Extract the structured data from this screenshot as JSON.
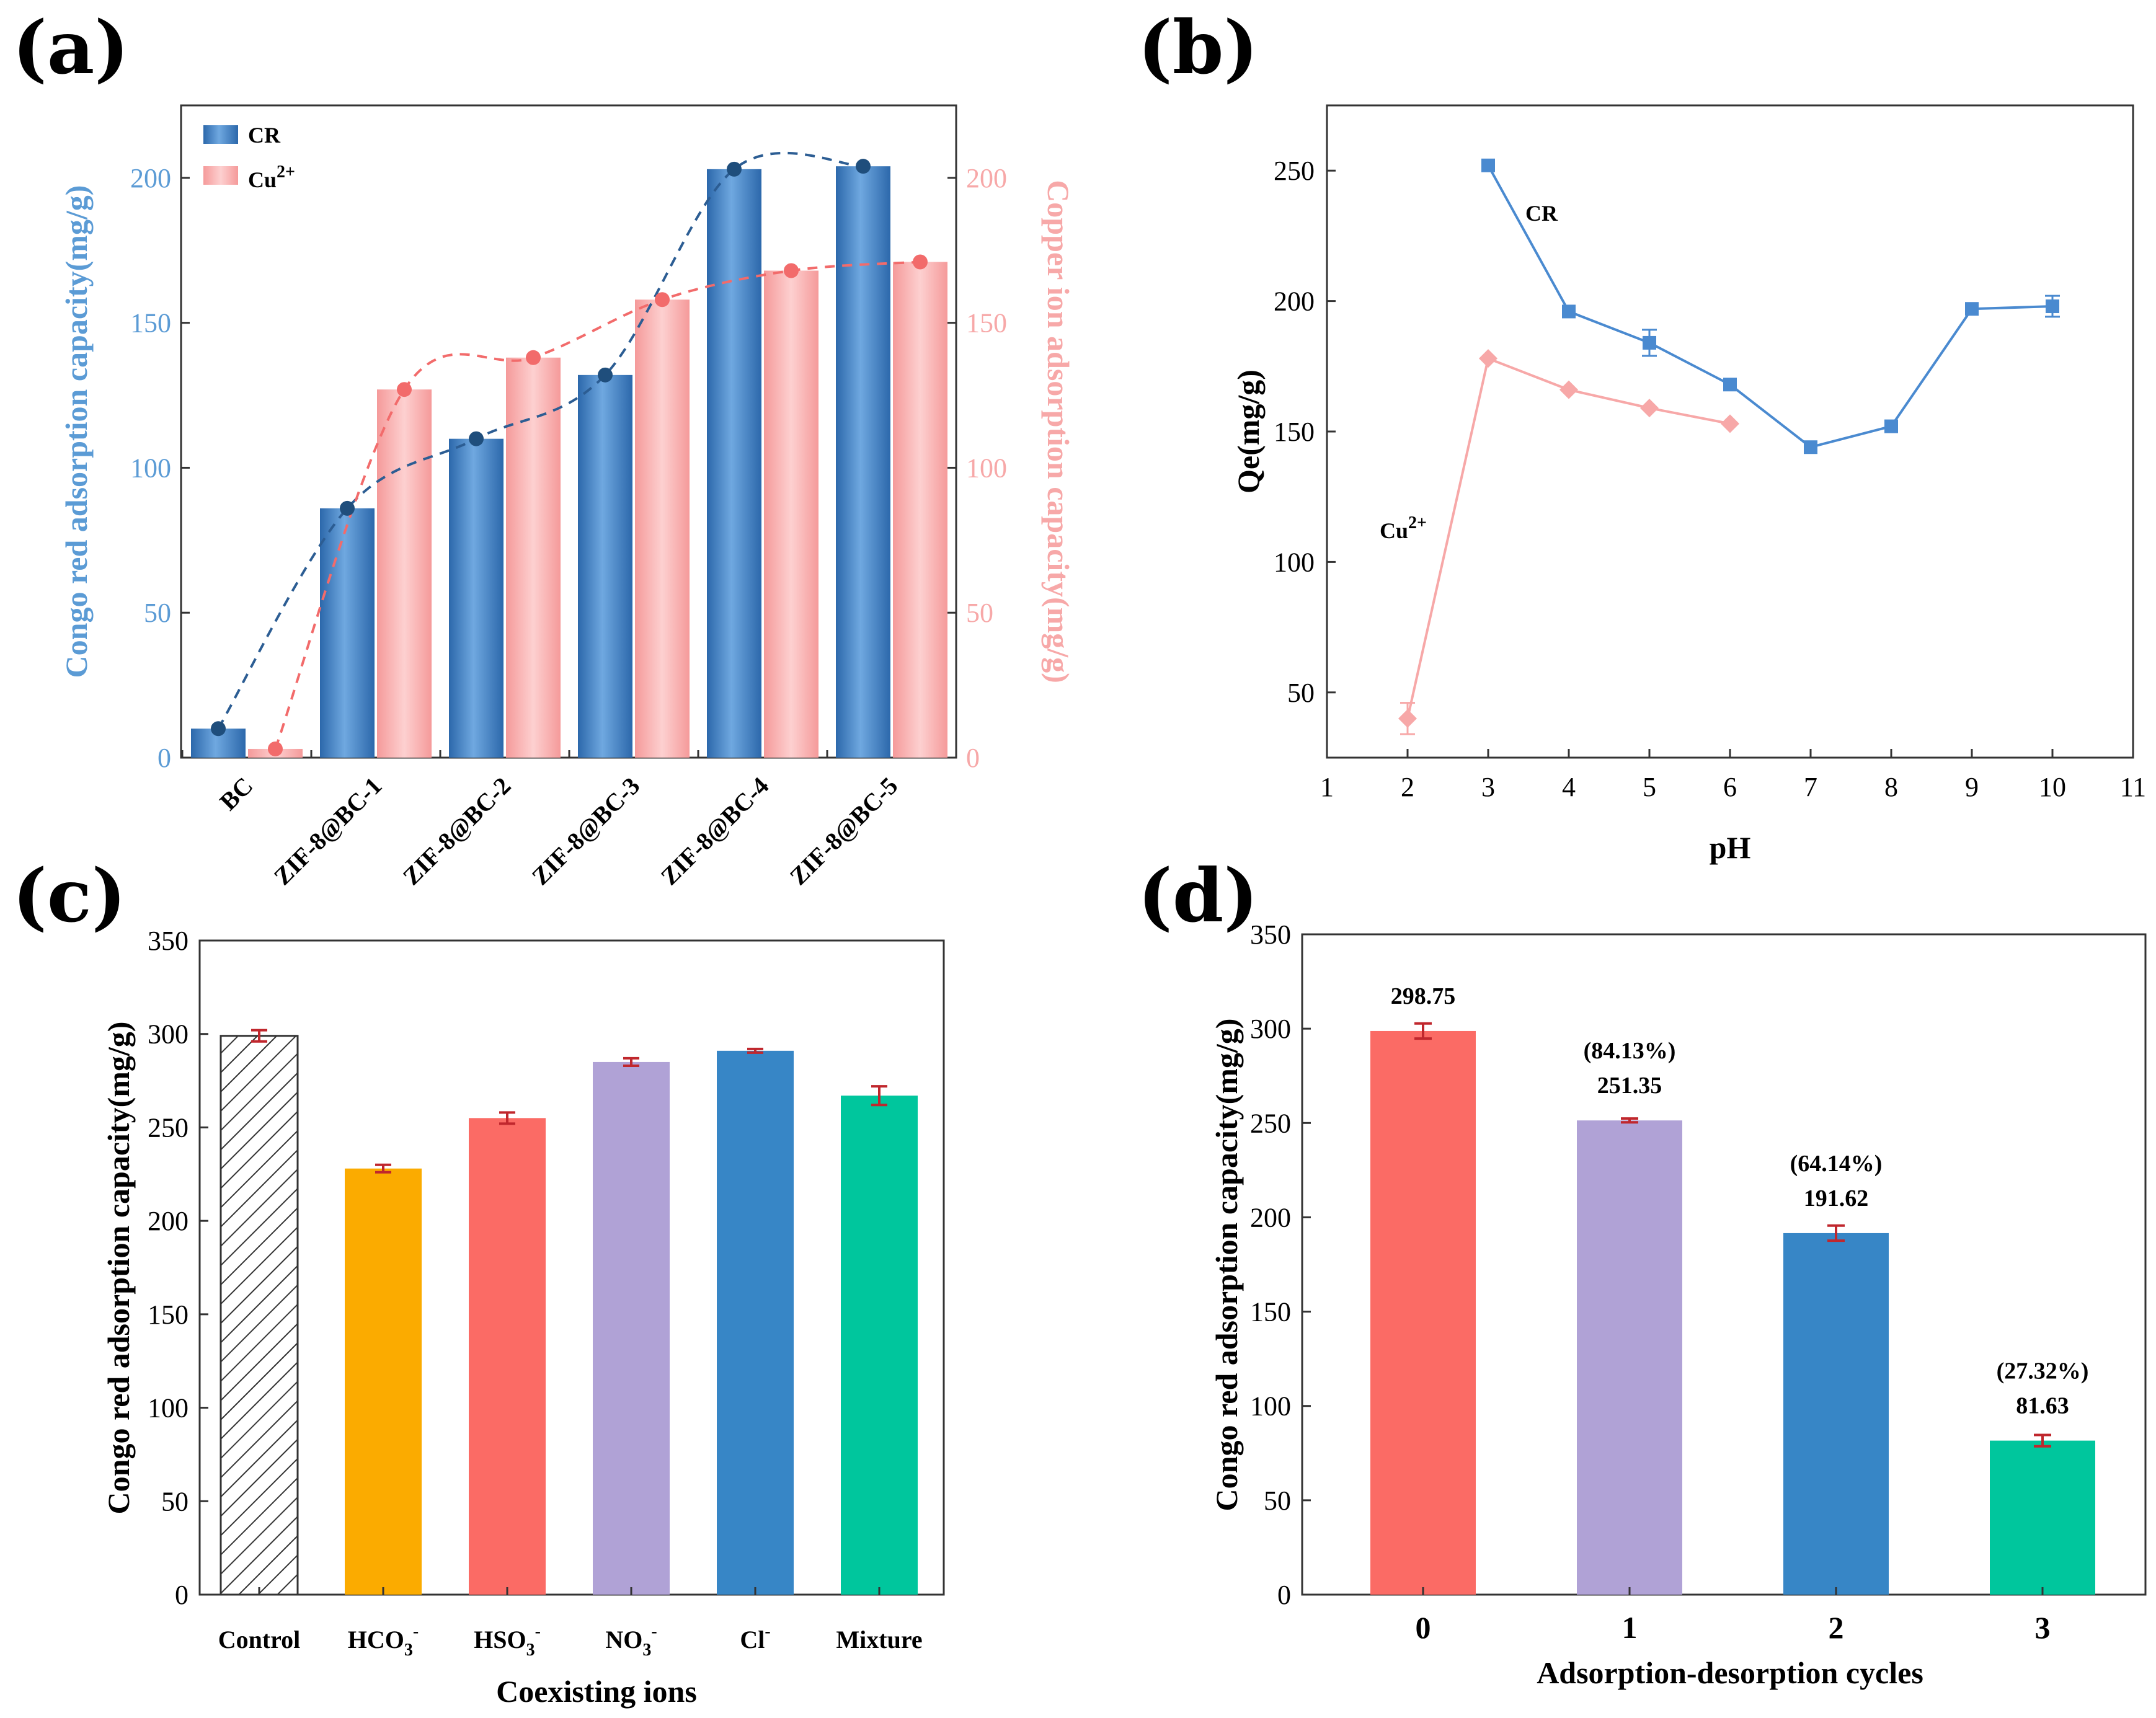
{
  "chart_data": [
    {
      "panel": "(a)",
      "type": "bar",
      "categories": [
        "BC",
        "ZIF-8@BC-1",
        "ZIF-8@BC-2",
        "ZIF-8@BC-3",
        "ZIF-8@BC-4",
        "ZIF-8@BC-5"
      ],
      "series": [
        {
          "name": "CR",
          "values": [
            10,
            86,
            110,
            132,
            203,
            204
          ],
          "color": "#3e7fc4",
          "axis": "left"
        },
        {
          "name": "Cu",
          "name_sup": "2+",
          "values": [
            3,
            127,
            138,
            158,
            168,
            171
          ],
          "color": "#f9a9a9",
          "axis": "right"
        }
      ],
      "ylabel": "Congo red adsorption capacity(mg/g)",
      "y2label": "Copper ion adsorption capacity(mg/g)",
      "ylim": [
        0,
        225
      ],
      "y2lim": [
        0,
        225
      ],
      "yticks": [
        "0",
        "50",
        "100",
        "150",
        "200"
      ],
      "y2ticks": [
        "0",
        "50",
        "100",
        "150",
        "200"
      ],
      "legend": "top-left"
    },
    {
      "panel": "(b)",
      "type": "line",
      "xlabel": "pH",
      "ylabel": "Qe(mg/g)",
      "xlim": [
        1,
        11
      ],
      "ylim": [
        25,
        275
      ],
      "xticks": [
        "1",
        "2",
        "3",
        "4",
        "5",
        "6",
        "7",
        "8",
        "9",
        "10",
        "11"
      ],
      "yticks": [
        "50",
        "100",
        "150",
        "200",
        "250"
      ],
      "series": [
        {
          "name": "CR",
          "x": [
            3,
            4,
            5,
            6,
            7,
            8,
            9,
            10
          ],
          "y": [
            252,
            196,
            184,
            168,
            144,
            152,
            197,
            198
          ],
          "err": [
            0,
            0,
            5,
            0,
            0,
            0,
            0,
            4
          ],
          "color": "#4a8ad0",
          "marker": "square"
        },
        {
          "name": "Cu",
          "name_sup": "2+",
          "x": [
            2,
            3,
            4,
            5,
            6
          ],
          "y": [
            40,
            178,
            166,
            159,
            153
          ],
          "err": [
            6,
            0,
            0,
            0,
            0
          ],
          "color": "#f7a8a8",
          "marker": "diamond"
        }
      ]
    },
    {
      "panel": "(c)",
      "type": "bar",
      "categories": [
        {
          "base": "Control",
          "sub": "",
          "sup": ""
        },
        {
          "base": "HCO",
          "sub": "3",
          "sup": "-"
        },
        {
          "base": "HSO",
          "sub": "3",
          "sup": "-"
        },
        {
          "base": "NO",
          "sub": "3",
          "sup": "-"
        },
        {
          "base": "Cl",
          "sub": "",
          "sup": "-"
        },
        {
          "base": "Mixture",
          "sub": "",
          "sup": ""
        }
      ],
      "values": [
        299,
        228,
        255,
        285,
        291,
        267
      ],
      "errors": [
        3,
        2,
        3,
        2,
        1,
        5
      ],
      "colors": [
        "hatch",
        "#fbab00",
        "#fb6b65",
        "#b0a2d6",
        "#3786c6",
        "#00c69d"
      ],
      "xlabel": "Coexisting ions",
      "ylabel": "Congo red adsorption capacity(mg/g)",
      "ylim": [
        0,
        350
      ],
      "yticks": [
        "0",
        "50",
        "100",
        "150",
        "200",
        "250",
        "300",
        "350"
      ]
    },
    {
      "panel": "(d)",
      "type": "bar",
      "categories": [
        "0",
        "1",
        "2",
        "3"
      ],
      "values": [
        298.75,
        251.35,
        191.62,
        81.63
      ],
      "errors": [
        4,
        1,
        4,
        3
      ],
      "data_labels": [
        "298.75",
        "251.35",
        "191.62",
        "81.63"
      ],
      "percent_labels": [
        "",
        "(84.13%)",
        "(64.14%)",
        "(27.32%)"
      ],
      "colors": [
        "#fb6b65",
        "#b0a2d6",
        "#3786c6",
        "#00c69d"
      ],
      "xlabel": "Adsorption-desorption cycles",
      "ylabel": "Congo red adsorption capacity(mg/g)",
      "ylim": [
        0,
        350
      ],
      "yticks": [
        "0",
        "50",
        "100",
        "150",
        "200",
        "250",
        "300",
        "350"
      ]
    }
  ]
}
